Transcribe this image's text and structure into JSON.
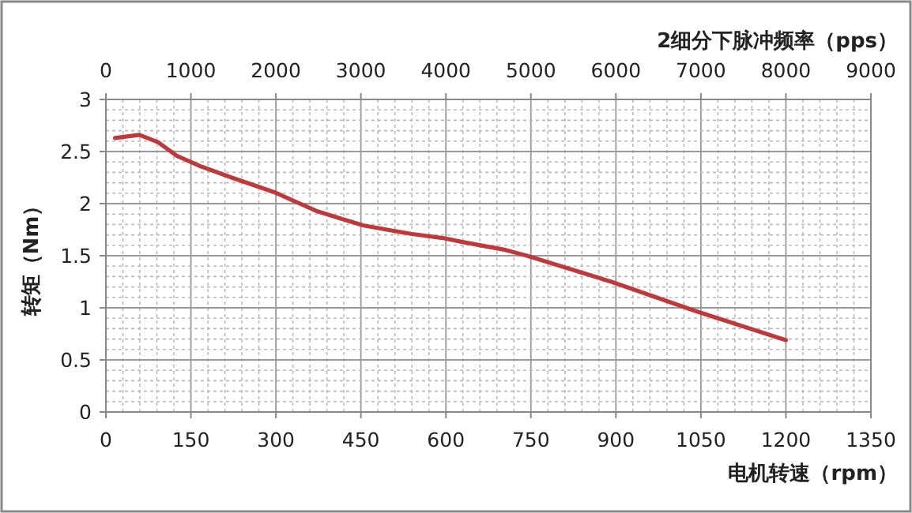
{
  "chart_data": {
    "type": "line",
    "xlabel": "电机转速（rpm）",
    "x2label": "2细分下脉冲频率（pps）",
    "ylabel": "转矩（Nm）",
    "xlim": [
      0,
      1350
    ],
    "xticks": [
      0,
      150,
      300,
      450,
      600,
      750,
      900,
      1050,
      1200,
      1350
    ],
    "x2lim": [
      0,
      9000
    ],
    "x2ticks": [
      0,
      1000,
      2000,
      3000,
      4000,
      5000,
      6000,
      7000,
      8000,
      9000
    ],
    "ylim": [
      0,
      3
    ],
    "yticks": [
      0,
      0.5,
      1,
      1.5,
      2,
      2.5,
      3
    ],
    "grid": true,
    "marker": "none",
    "line_style": "solid",
    "series": [
      {
        "color": "#be3a3a",
        "x": [
          16,
          59,
          92,
          125,
          166,
          222,
          297,
          371,
          418,
          455,
          538,
          594,
          631,
          701,
          743,
          892,
          1040,
          1200
        ],
        "values": [
          2.63,
          2.66,
          2.59,
          2.46,
          2.36,
          2.25,
          2.11,
          1.93,
          1.85,
          1.79,
          1.71,
          1.67,
          1.63,
          1.56,
          1.5,
          1.25,
          0.97,
          0.69
        ]
      }
    ]
  }
}
